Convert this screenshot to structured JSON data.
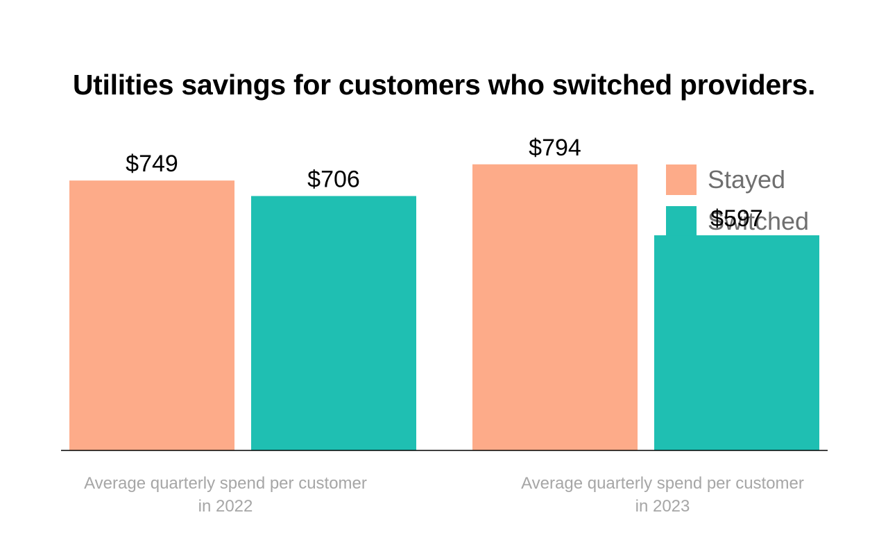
{
  "chart_data": {
    "type": "bar",
    "title": "Utilities savings for customers who switched providers.",
    "categories": [
      "Average quarterly spend per customer in 2022",
      "Average quarterly spend per customer in 2023"
    ],
    "series": [
      {
        "name": "Stayed",
        "values": [
          749,
          794
        ],
        "color": "#fdab89"
      },
      {
        "name": "Switched",
        "values": [
          706,
          597
        ],
        "color": "#1fbfb2"
      }
    ],
    "data_labels": [
      [
        "$749",
        "$794"
      ],
      [
        "$706",
        "$597"
      ]
    ],
    "ylim": [
      0,
      1250
    ],
    "grid": false,
    "legend": "top-right",
    "axis_color": "#000000"
  }
}
